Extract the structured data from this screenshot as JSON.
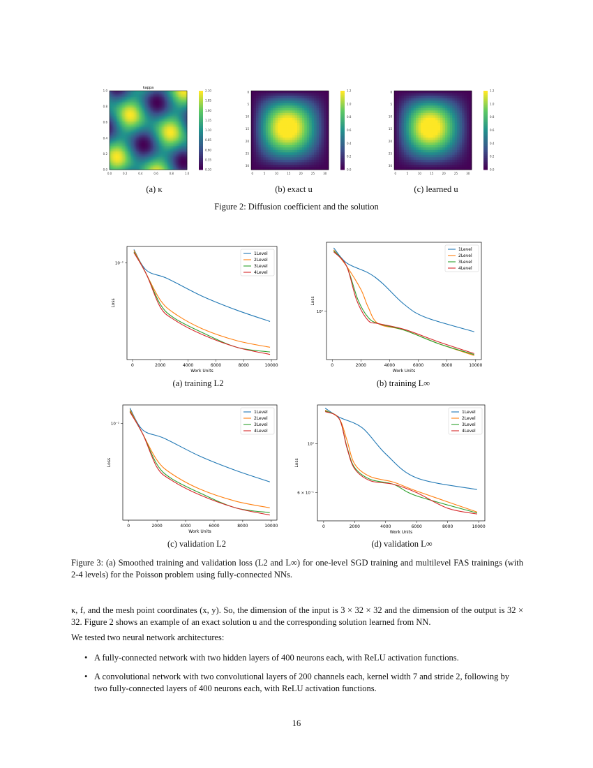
{
  "figure2": {
    "caption": "Figure 2: Diffusion coefficient and the solution",
    "panels": [
      {
        "sub": "(a) κ",
        "title": "kappa",
        "xticks": [
          "0.0",
          "0.2",
          "0.4",
          "0.6",
          "0.8",
          "1.0"
        ],
        "yticks": [
          "1.0",
          "0.8",
          "0.6",
          "0.4",
          "0.2",
          "0.0"
        ],
        "cbar": [
          "2.10",
          "1.85",
          "1.60",
          "1.35",
          "1.10",
          "0.85",
          "0.60",
          "0.35",
          "0.10"
        ]
      },
      {
        "sub": "(b) exact u",
        "title": "",
        "xticks": [
          "0",
          "5",
          "10",
          "15",
          "20",
          "25",
          "30"
        ],
        "yticks": [
          "0",
          "5",
          "10",
          "15",
          "20",
          "25",
          "30"
        ],
        "cbar": [
          "1.2",
          "1.0",
          "0.8",
          "0.6",
          "0.4",
          "0.2",
          "0.0"
        ]
      },
      {
        "sub": "(c) learned u",
        "title": "",
        "xticks": [
          "0",
          "5",
          "10",
          "15",
          "20",
          "25",
          "30"
        ],
        "yticks": [
          "0",
          "5",
          "10",
          "15",
          "20",
          "25",
          "30"
        ],
        "cbar": [
          "1.2",
          "1.0",
          "0.8",
          "0.6",
          "0.4",
          "0.2",
          "0.0"
        ]
      }
    ],
    "colormap": [
      "#440154",
      "#3b528b",
      "#21918c",
      "#5ec962",
      "#fde725"
    ]
  },
  "figure3": {
    "caption": "Figure 3: (a) Smoothed training and validation loss (L2 and L∞) for one-level SGD training and multilevel FAS trainings (with 2-4 levels) for the Poisson problem using fully-connected NNs."
  },
  "chart_data": [
    {
      "type": "line",
      "sub": "(a) training L2",
      "xlabel": "Work Units",
      "ylabel": "Loss",
      "yscale": "log",
      "xlim": [
        -400,
        10400
      ],
      "ylim": [
        0.0034,
        0.012
      ],
      "xticks": [
        0,
        2000,
        4000,
        6000,
        8000,
        10000
      ],
      "xtick_labels": [
        "0",
        "2000",
        "4000",
        "6000",
        "8000",
        "10000"
      ],
      "yticks": [
        {
          "value": 0.01,
          "label": "10⁻²"
        }
      ],
      "legend": "top-right",
      "series": [
        {
          "name": "1Level",
          "color": "#1f77b4",
          "x": [
            100,
            1000,
            2500,
            5000,
            7500,
            9900
          ],
          "y": [
            0.0116,
            0.0092,
            0.0084,
            0.0069,
            0.0059,
            0.0052
          ]
        },
        {
          "name": "2Level",
          "color": "#ff7f0e",
          "x": [
            100,
            1000,
            2000,
            3000,
            5000,
            7500,
            9900
          ],
          "y": [
            0.0115,
            0.0088,
            0.0066,
            0.0057,
            0.0048,
            0.0042,
            0.0039
          ]
        },
        {
          "name": "3Level",
          "color": "#2ca02c",
          "x": [
            100,
            1000,
            2000,
            3000,
            5000,
            7500,
            9900
          ],
          "y": [
            0.0113,
            0.0088,
            0.0063,
            0.0054,
            0.0046,
            0.0039,
            0.0037
          ]
        },
        {
          "name": "4Level",
          "color": "#d62728",
          "x": [
            100,
            1000,
            2000,
            3000,
            5000,
            7500,
            9900
          ],
          "y": [
            0.0112,
            0.0088,
            0.0061,
            0.0053,
            0.0045,
            0.0039,
            0.0036
          ]
        }
      ]
    },
    {
      "type": "line",
      "sub": "(b) training L∞",
      "xlabel": "Work Units",
      "ylabel": "Loss",
      "yscale": "log",
      "xlim": [
        -400,
        10400
      ],
      "ylim": [
        0.72,
        1.6
      ],
      "xticks": [
        0,
        2000,
        4000,
        6000,
        8000,
        10000
      ],
      "xtick_labels": [
        "0",
        "2000",
        "4000",
        "6000",
        "8000",
        "10000"
      ],
      "yticks": [
        {
          "value": 1.0,
          "label": "10⁰"
        }
      ],
      "legend": "top-right",
      "series": [
        {
          "name": "1Level",
          "color": "#1f77b4",
          "x": [
            100,
            1000,
            2500,
            3500,
            5000,
            6500,
            9900
          ],
          "y": [
            1.54,
            1.39,
            1.3,
            1.21,
            1.05,
            0.96,
            0.87
          ]
        },
        {
          "name": "2Level",
          "color": "#ff7f0e",
          "x": [
            100,
            1000,
            2000,
            2500,
            3200,
            5000,
            7500,
            9900
          ],
          "y": [
            1.52,
            1.36,
            1.16,
            1.03,
            0.92,
            0.88,
            0.8,
            0.74
          ]
        },
        {
          "name": "3Level",
          "color": "#2ca02c",
          "x": [
            100,
            1000,
            1800,
            2500,
            3200,
            5000,
            7500,
            9900
          ],
          "y": [
            1.51,
            1.36,
            1.08,
            0.96,
            0.92,
            0.88,
            0.8,
            0.745
          ]
        },
        {
          "name": "4Level",
          "color": "#d62728",
          "x": [
            100,
            1000,
            1700,
            2500,
            3200,
            5000,
            7500,
            9900
          ],
          "y": [
            1.5,
            1.36,
            1.08,
            0.94,
            0.92,
            0.885,
            0.81,
            0.75
          ]
        }
      ]
    },
    {
      "type": "line",
      "sub": "(c) validation L2",
      "xlabel": "Work Units",
      "ylabel": "Loss",
      "yscale": "log",
      "xlim": [
        -400,
        10400
      ],
      "ylim": [
        0.0035,
        0.0122
      ],
      "xticks": [
        0,
        2000,
        4000,
        6000,
        8000,
        10000
      ],
      "xtick_labels": [
        "0",
        "2000",
        "4000",
        "6000",
        "8000",
        "10000"
      ],
      "yticks": [
        {
          "value": 0.01,
          "label": "10⁻²"
        }
      ],
      "legend": "top-right",
      "series": [
        {
          "name": "1Level",
          "color": "#1f77b4",
          "x": [
            100,
            1000,
            2500,
            5000,
            7500,
            9900
          ],
          "y": [
            0.0118,
            0.0093,
            0.0085,
            0.007,
            0.006,
            0.0053
          ]
        },
        {
          "name": "2Level",
          "color": "#ff7f0e",
          "x": [
            100,
            1000,
            2000,
            3000,
            5000,
            7500,
            9900
          ],
          "y": [
            0.0116,
            0.0089,
            0.0067,
            0.0058,
            0.0049,
            0.0043,
            0.004
          ]
        },
        {
          "name": "3Level",
          "color": "#2ca02c",
          "x": [
            100,
            1000,
            2000,
            3000,
            5000,
            7500,
            9900
          ],
          "y": [
            0.0114,
            0.0089,
            0.0064,
            0.0055,
            0.0047,
            0.004,
            0.0038
          ]
        },
        {
          "name": "4Level",
          "color": "#d62728",
          "x": [
            100,
            1000,
            2000,
            3000,
            5000,
            7500,
            9900
          ],
          "y": [
            0.0113,
            0.0089,
            0.0062,
            0.0054,
            0.0046,
            0.004,
            0.0037
          ]
        }
      ]
    },
    {
      "type": "line",
      "sub": "(d) validation L∞",
      "xlabel": "Work Units",
      "ylabel": "Loss",
      "yscale": "log",
      "xlim": [
        -400,
        10400
      ],
      "ylim": [
        0.447,
        1.5
      ],
      "xticks": [
        0,
        2000,
        4000,
        6000,
        8000,
        10000
      ],
      "xtick_labels": [
        "0",
        "2000",
        "4000",
        "6000",
        "8000",
        "10000"
      ],
      "yticks": [
        {
          "value": 1.0,
          "label": "10⁰"
        },
        {
          "value": 0.6,
          "label": "6 × 10⁻¹"
        }
      ],
      "legend": "top-right",
      "series": [
        {
          "name": "1Level",
          "color": "#1f77b4",
          "x": [
            100,
            1000,
            2500,
            4000,
            6000,
            9900
          ],
          "y": [
            1.45,
            1.32,
            1.18,
            0.9,
            0.7,
            0.62
          ]
        },
        {
          "name": "2Level",
          "color": "#ff7f0e",
          "x": [
            100,
            1000,
            1500,
            2000,
            3000,
            4500,
            6000,
            9900
          ],
          "y": [
            1.42,
            1.3,
            1.04,
            0.81,
            0.71,
            0.67,
            0.61,
            0.49
          ]
        },
        {
          "name": "3Level",
          "color": "#2ca02c",
          "x": [
            100,
            1000,
            1500,
            2000,
            3000,
            4500,
            6000,
            9900
          ],
          "y": [
            1.41,
            1.3,
            0.97,
            0.78,
            0.69,
            0.655,
            0.58,
            0.485
          ]
        },
        {
          "name": "4Level",
          "color": "#d62728",
          "x": [
            100,
            1000,
            1500,
            2000,
            3000,
            4500,
            6000,
            8000,
            9900
          ],
          "y": [
            1.4,
            1.3,
            0.96,
            0.77,
            0.68,
            0.655,
            0.6,
            0.51,
            0.48
          ]
        }
      ]
    }
  ],
  "text": {
    "para1": "κ, f, and the mesh point coordinates (x, y). So, the dimension of the input is 3 × 32 × 32 and the dimension of the output is 32 × 32. Figure 2 shows an example of an exact solution u and the corresponding solution learned from NN.",
    "para2": "We tested two neural network architectures:",
    "bullets": [
      "A fully-connected network with two hidden layers of 400 neurons each, with ReLU activation functions.",
      "A convolutional network with two convolutional layers of 200 channels each, kernel width 7 and stride 2, following by two fully-connected layers of 400 neurons each, with ReLU activation functions."
    ],
    "bullet_symbol": "•",
    "page_number": "16"
  }
}
